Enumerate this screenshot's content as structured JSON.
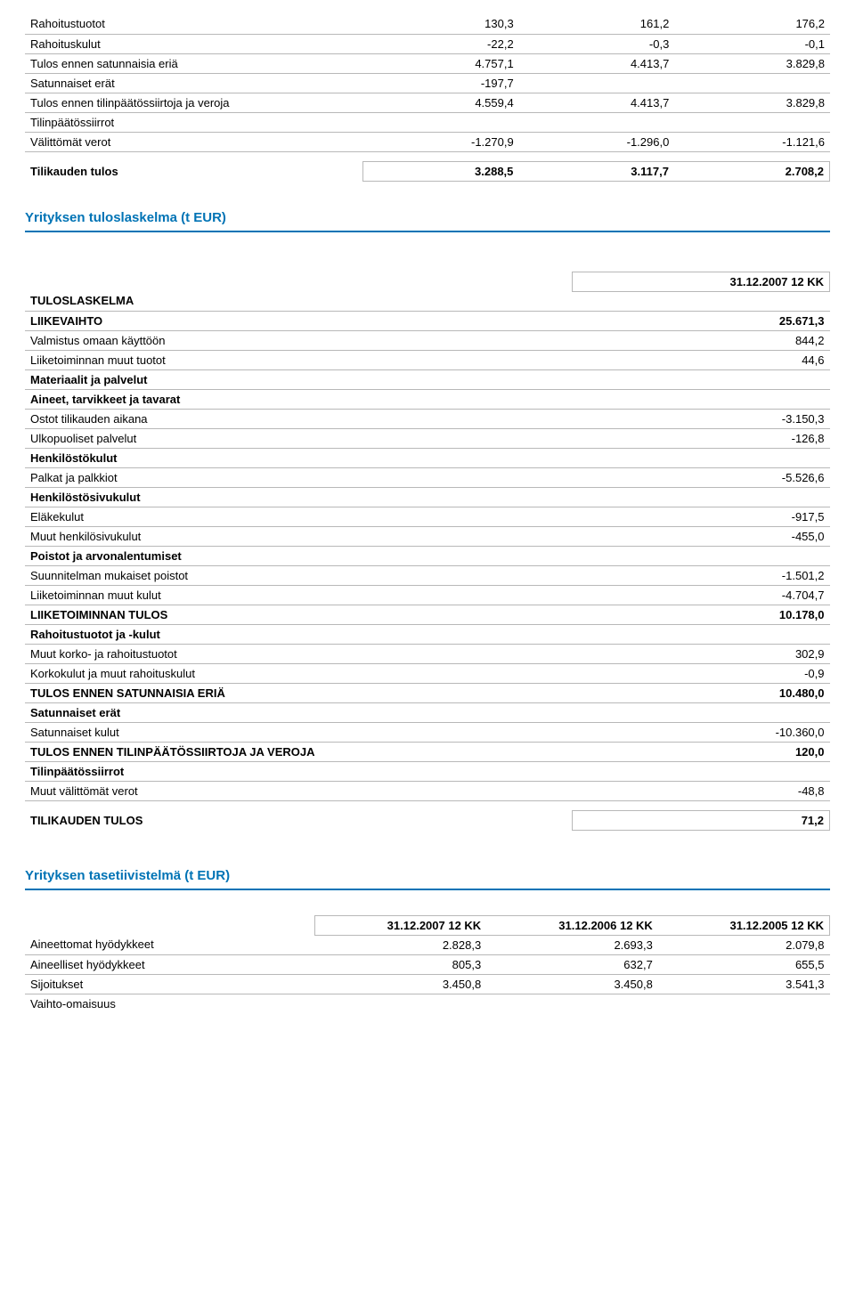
{
  "table1": {
    "rows": [
      {
        "label": "Rahoitustuotot",
        "v1": "130,3",
        "v2": "161,2",
        "v3": "176,2",
        "bold": false,
        "style": "line"
      },
      {
        "label": "Rahoituskulut",
        "v1": "-22,2",
        "v2": "-0,3",
        "v3": "-0,1",
        "bold": false,
        "style": "line"
      },
      {
        "label": "Tulos ennen satunnaisia eriä",
        "v1": "4.757,1",
        "v2": "4.413,7",
        "v3": "3.829,8",
        "bold": false,
        "style": "line"
      },
      {
        "label": "Satunnaiset erät",
        "v1": "-197,7",
        "v2": "",
        "v3": "",
        "bold": false,
        "style": "line"
      },
      {
        "label": "Tulos ennen tilinpäätössiirtoja ja veroja",
        "v1": "4.559,4",
        "v2": "4.413,7",
        "v3": "3.829,8",
        "bold": false,
        "style": "line"
      },
      {
        "label": "Tilinpäätössiirrot",
        "v1": "",
        "v2": "",
        "v3": "",
        "bold": false,
        "style": "line"
      },
      {
        "label": "Välittömät verot",
        "v1": "-1.270,9",
        "v2": "-1.296,0",
        "v3": "-1.121,6",
        "bold": false,
        "style": "line"
      }
    ],
    "final": {
      "label": "Tilikauden tulos",
      "v1": "3.288,5",
      "v2": "3.117,7",
      "v3": "2.708,2"
    }
  },
  "section1_title": "Yrityksen tuloslaskelma (t EUR)",
  "table2": {
    "header": "31.12.2007 12 KK",
    "rows": [
      {
        "label": "TULOSLASKELMA",
        "val": "",
        "bold": true,
        "style": "line"
      },
      {
        "label": "LIIKEVAIHTO",
        "val": "25.671,3",
        "bold": true,
        "style": "line"
      },
      {
        "label": "Valmistus omaan käyttöön",
        "val": "844,2",
        "bold": false,
        "style": "line"
      },
      {
        "label": "Liiketoiminnan muut tuotot",
        "val": "44,6",
        "bold": false,
        "style": "line"
      },
      {
        "label": "Materiaalit ja palvelut",
        "val": "",
        "bold": true,
        "style": "line"
      },
      {
        "label": "Aineet, tarvikkeet ja tavarat",
        "val": "",
        "bold": true,
        "style": "line"
      },
      {
        "label": "Ostot tilikauden aikana",
        "val": "-3.150,3",
        "bold": false,
        "style": "line"
      },
      {
        "label": "Ulkopuoliset palvelut",
        "val": "-126,8",
        "bold": false,
        "style": "line"
      },
      {
        "label": "Henkilöstökulut",
        "val": "",
        "bold": true,
        "style": "line"
      },
      {
        "label": "Palkat ja palkkiot",
        "val": "-5.526,6",
        "bold": false,
        "style": "line"
      },
      {
        "label": "Henkilöstösivukulut",
        "val": "",
        "bold": true,
        "style": "line"
      },
      {
        "label": "Eläkekulut",
        "val": "-917,5",
        "bold": false,
        "style": "line"
      },
      {
        "label": "Muut henkilösivukulut",
        "val": "-455,0",
        "bold": false,
        "style": "line"
      },
      {
        "label": "Poistot ja arvonalentumiset",
        "val": "",
        "bold": true,
        "style": "line"
      },
      {
        "label": "Suunnitelman mukaiset poistot",
        "val": "-1.501,2",
        "bold": false,
        "style": "line"
      },
      {
        "label": "Liiketoiminnan muut kulut",
        "val": "-4.704,7",
        "bold": false,
        "style": "line"
      },
      {
        "label": "LIIKETOIMINNAN TULOS",
        "val": "10.178,0",
        "bold": true,
        "style": "line"
      },
      {
        "label": "Rahoitustuotot ja -kulut",
        "val": "",
        "bold": true,
        "style": "line"
      },
      {
        "label": "Muut korko- ja rahoitustuotot",
        "val": "302,9",
        "bold": false,
        "style": "line"
      },
      {
        "label": "Korkokulut ja muut rahoituskulut",
        "val": "-0,9",
        "bold": false,
        "style": "line"
      },
      {
        "label": "TULOS ENNEN SATUNNAISIA ERIÄ",
        "val": "10.480,0",
        "bold": true,
        "style": "line"
      },
      {
        "label": "Satunnaiset erät",
        "val": "",
        "bold": true,
        "style": "line"
      },
      {
        "label": "Satunnaiset kulut",
        "val": "-10.360,0",
        "bold": false,
        "style": "line"
      },
      {
        "label": "TULOS ENNEN TILINPÄÄTÖSSIIRTOJA JA VEROJA",
        "val": "120,0",
        "bold": true,
        "style": "line"
      },
      {
        "label": "Tilinpäätössiirrot",
        "val": "",
        "bold": true,
        "style": "line"
      },
      {
        "label": "Muut välittömät verot",
        "val": "-48,8",
        "bold": false,
        "style": "line"
      }
    ],
    "final": {
      "label": "TILIKAUDEN TULOS",
      "val": "71,2"
    }
  },
  "section2_title": "Yrityksen tasetiivistelmä (t EUR)",
  "table3": {
    "headers": [
      "31.12.2007 12 KK",
      "31.12.2006 12 KK",
      "31.12.2005 12 KK"
    ],
    "rows": [
      {
        "label": "Aineettomat hyödykkeet",
        "v1": "2.828,3",
        "v2": "2.693,3",
        "v3": "2.079,8",
        "style": "line"
      },
      {
        "label": "Aineelliset hyödykkeet",
        "v1": "805,3",
        "v2": "632,7",
        "v3": "655,5",
        "style": "line"
      },
      {
        "label": "Sijoitukset",
        "v1": "3.450,8",
        "v2": "3.450,8",
        "v3": "3.541,3",
        "style": "line"
      },
      {
        "label": "Vaihto-omaisuus",
        "v1": "",
        "v2": "",
        "v3": "",
        "style": "plain"
      }
    ]
  }
}
